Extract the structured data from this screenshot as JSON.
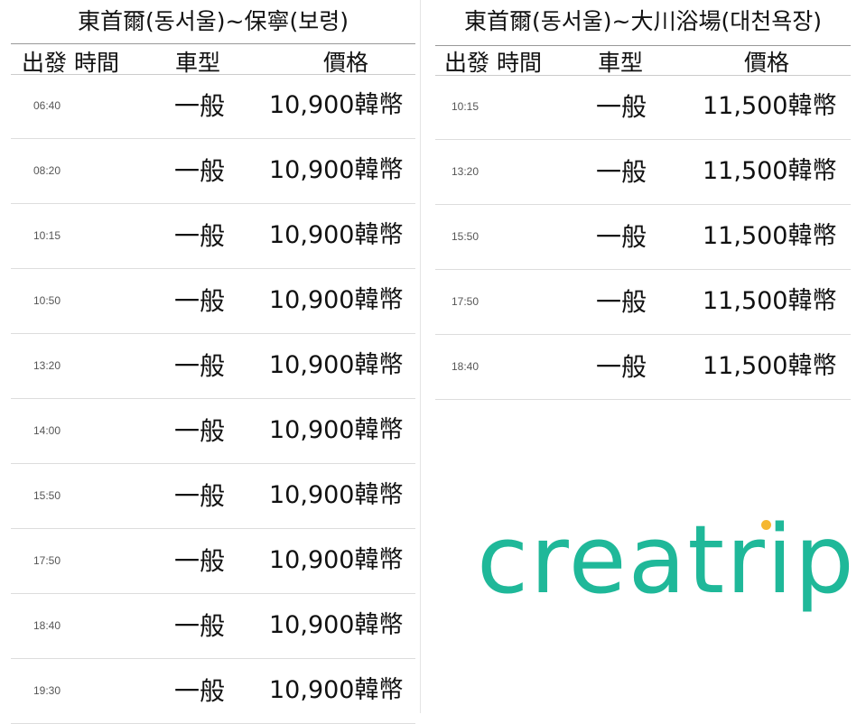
{
  "left": {
    "title": "東首爾(동서울)~保寧(보령)",
    "headers": [
      "出發 時間",
      "車型",
      "價格"
    ],
    "rows": [
      {
        "time": "06:40",
        "type": "一般",
        "price": "10,900韓幣"
      },
      {
        "time": "08:20",
        "type": "一般",
        "price": "10,900韓幣"
      },
      {
        "time": "10:15",
        "type": "一般",
        "price": "10,900韓幣"
      },
      {
        "time": "10:50",
        "type": "一般",
        "price": "10,900韓幣"
      },
      {
        "time": "13:20",
        "type": "一般",
        "price": "10,900韓幣"
      },
      {
        "time": "14:00",
        "type": "一般",
        "price": "10,900韓幣"
      },
      {
        "time": "15:50",
        "type": "一般",
        "price": "10,900韓幣"
      },
      {
        "time": "17:50",
        "type": "一般",
        "price": "10,900韓幣"
      },
      {
        "time": "18:40",
        "type": "一般",
        "price": "10,900韓幣"
      },
      {
        "time": "19:30",
        "type": "一般",
        "price": "10,900韓幣"
      }
    ]
  },
  "right": {
    "title": "東首爾(동서울)~大川浴場(대천욕장)",
    "headers": [
      "出發 時間",
      "車型",
      "價格"
    ],
    "rows": [
      {
        "time": "10:15",
        "type": "一般",
        "price": "11,500韓幣"
      },
      {
        "time": "13:20",
        "type": "一般",
        "price": "11,500韓幣"
      },
      {
        "time": "15:50",
        "type": "一般",
        "price": "11,500韓幣"
      },
      {
        "time": "17:50",
        "type": "一般",
        "price": "11,500韓幣"
      },
      {
        "time": "18:40",
        "type": "一般",
        "price": "11,500韓幣"
      }
    ]
  },
  "logo": {
    "text": "creatrip",
    "color": "#1fb899",
    "dot_color": "#f5b731"
  }
}
